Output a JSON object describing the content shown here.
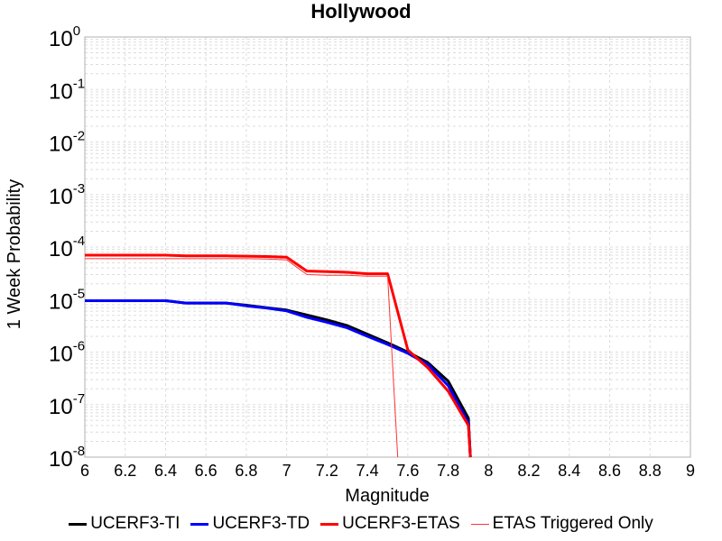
{
  "chart_data": {
    "type": "line",
    "title": "Hollywood",
    "xlabel": "Magnitude",
    "ylabel": "1 Week Probability",
    "xlim": [
      6,
      9
    ],
    "ylim": [
      1e-08,
      1
    ],
    "yscale": "log",
    "grid": true,
    "legend": "bottom",
    "xticks": [
      "6",
      "6.2",
      "6.4",
      "6.6",
      "6.8",
      "7",
      "7.2",
      "7.4",
      "7.6",
      "7.8",
      "8",
      "8.2",
      "8.4",
      "8.6",
      "8.8",
      "9"
    ],
    "yticks": [
      {
        "base": "10",
        "exp": "0",
        "value": 1
      },
      {
        "base": "10",
        "exp": "-1",
        "value": 0.1
      },
      {
        "base": "10",
        "exp": "-2",
        "value": 0.01
      },
      {
        "base": "10",
        "exp": "-3",
        "value": 0.001
      },
      {
        "base": "10",
        "exp": "-4",
        "value": 0.0001
      },
      {
        "base": "10",
        "exp": "-5",
        "value": 1e-05
      },
      {
        "base": "10",
        "exp": "-6",
        "value": 1e-06
      },
      {
        "base": "10",
        "exp": "-7",
        "value": 1e-07
      },
      {
        "base": "10",
        "exp": "-8",
        "value": 1e-08
      }
    ],
    "series": [
      {
        "name": "UCERF3-TI",
        "color": "#000000",
        "width": 3,
        "x": [
          6.0,
          6.1,
          6.2,
          6.3,
          6.4,
          6.5,
          6.6,
          6.7,
          6.8,
          6.9,
          7.0,
          7.1,
          7.2,
          7.3,
          7.4,
          7.5,
          7.6,
          7.7,
          7.8,
          7.9,
          7.91
        ],
        "y": [
          9.5e-06,
          9.5e-06,
          9.5e-06,
          9.5e-06,
          9.5e-06,
          8.6e-06,
          8.6e-06,
          8.6e-06,
          7.8e-06,
          7e-06,
          6.3e-06,
          5.1e-06,
          4.1e-06,
          3.2e-06,
          2.2e-06,
          1.5e-06,
          1e-06,
          6.3e-07,
          2.8e-07,
          5.5e-08,
          6e-09
        ]
      },
      {
        "name": "UCERF3-TD",
        "color": "#0000ff",
        "width": 3,
        "x": [
          6.0,
          6.1,
          6.2,
          6.3,
          6.4,
          6.5,
          6.6,
          6.7,
          6.8,
          6.9,
          7.0,
          7.1,
          7.2,
          7.3,
          7.4,
          7.5,
          7.6,
          7.7,
          7.8,
          7.9,
          7.91
        ],
        "y": [
          9.5e-06,
          9.5e-06,
          9.5e-06,
          9.5e-06,
          9.5e-06,
          8.6e-06,
          8.6e-06,
          8.6e-06,
          7.6e-06,
          6.9e-06,
          6.1e-06,
          4.6e-06,
          3.7e-06,
          2.9e-06,
          2e-06,
          1.4e-06,
          9.5e-07,
          5.8e-07,
          2.3e-07,
          4.5e-08,
          6e-09
        ]
      },
      {
        "name": "UCERF3-ETAS",
        "color": "#ff0000",
        "width": 3,
        "x": [
          6.0,
          6.1,
          6.2,
          6.3,
          6.4,
          6.5,
          6.6,
          6.7,
          6.8,
          6.9,
          7.0,
          7.1,
          7.2,
          7.3,
          7.4,
          7.5,
          7.6,
          7.7,
          7.8,
          7.9,
          7.91
        ],
        "y": [
          7e-05,
          7e-05,
          7e-05,
          7e-05,
          7e-05,
          6.8e-05,
          6.8e-05,
          6.8e-05,
          6.7e-05,
          6.6e-05,
          6.4e-05,
          3.5e-05,
          3.4e-05,
          3.3e-05,
          3.1e-05,
          3.1e-05,
          1.1e-06,
          5e-07,
          1.8e-07,
          4e-08,
          6e-09
        ]
      },
      {
        "name": "ETAS Triggered Only",
        "color": "#ff3333",
        "width": 1,
        "x": [
          6.0,
          6.1,
          6.2,
          6.3,
          6.4,
          6.5,
          6.6,
          6.7,
          6.8,
          6.9,
          7.0,
          7.1,
          7.2,
          7.3,
          7.4,
          7.5,
          7.55
        ],
        "y": [
          6e-05,
          6e-05,
          6e-05,
          6e-05,
          6e-05,
          6e-05,
          6e-05,
          6e-05,
          6e-05,
          5.9e-05,
          5.7e-05,
          3e-05,
          2.9e-05,
          2.9e-05,
          2.8e-05,
          2.8e-05,
          6e-09
        ]
      }
    ]
  }
}
